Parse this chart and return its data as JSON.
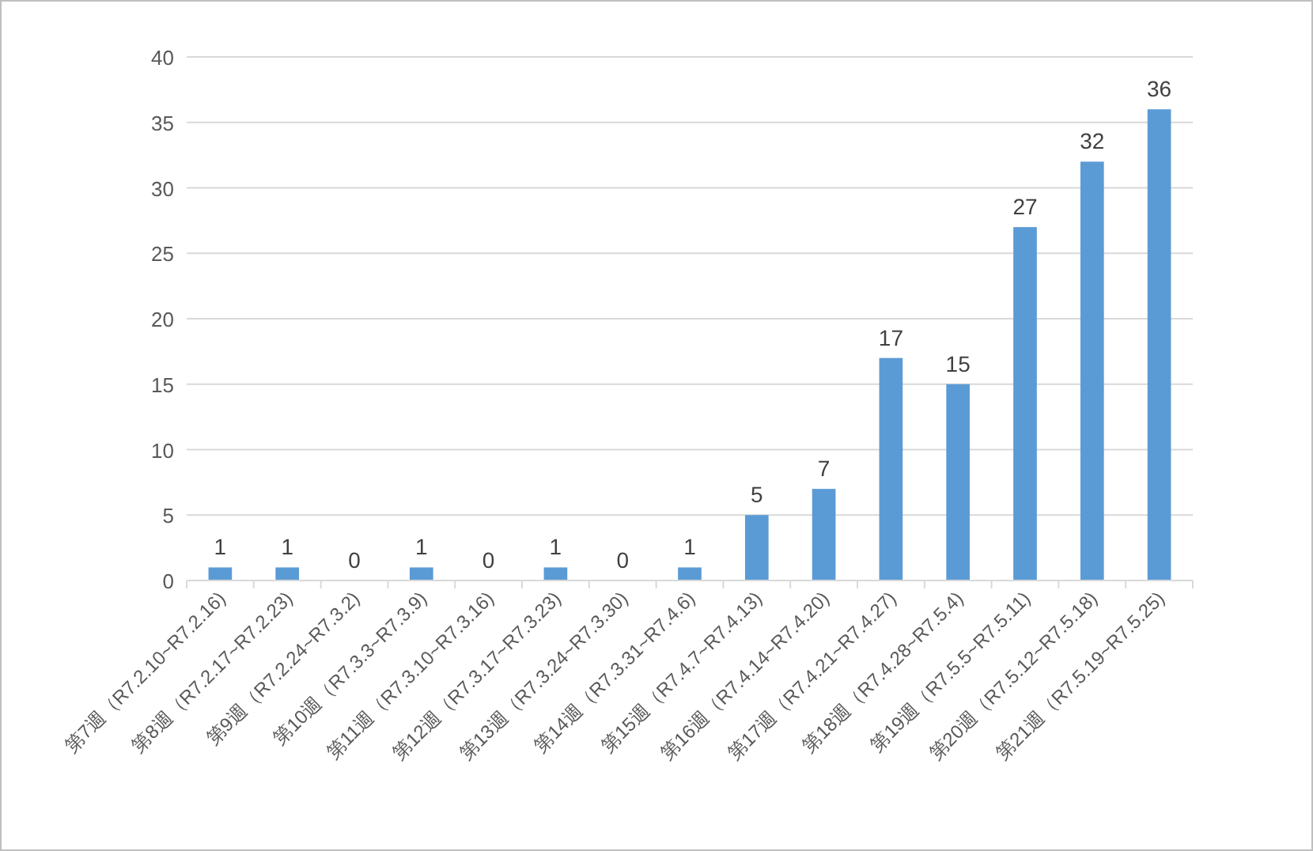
{
  "chart_data": {
    "type": "bar",
    "categories": [
      "第7週（R7.2.10~R7.2.16)",
      "第8週（R7.2.17~R7.2.23)",
      "第9週（R7.2.24~R7.3.2)",
      "第10週（R7.3.3~R7.3.9)",
      "第11週（R7.3.10~R7.3.16)",
      "第12週（R7.3.17~R7.3.23)",
      "第13週（R7.3.24~R7.3.30)",
      "第14週（R7.3.31~R7.4.6)",
      "第15週（R7.4.7~R7.4.13)",
      "第16週（R7.4.14~R7.4.20)",
      "第17週（R7.4.21~R7.4.27)",
      "第18週（R7.4.28~R7.5.4)",
      "第19週（R7.5.5~R7.5.11)",
      "第20週（R7.5.12~R7.5.18)",
      "第21週（R7.5.19~R7.5.25)"
    ],
    "values": [
      1,
      1,
      0,
      1,
      0,
      1,
      0,
      1,
      5,
      7,
      17,
      15,
      27,
      32,
      36
    ],
    "color": "#5b9bd5",
    "ylim": [
      0,
      40
    ],
    "yticks": [
      0,
      5,
      10,
      15,
      20,
      25,
      30,
      35,
      40
    ],
    "grid": "y",
    "data_labels": true
  }
}
